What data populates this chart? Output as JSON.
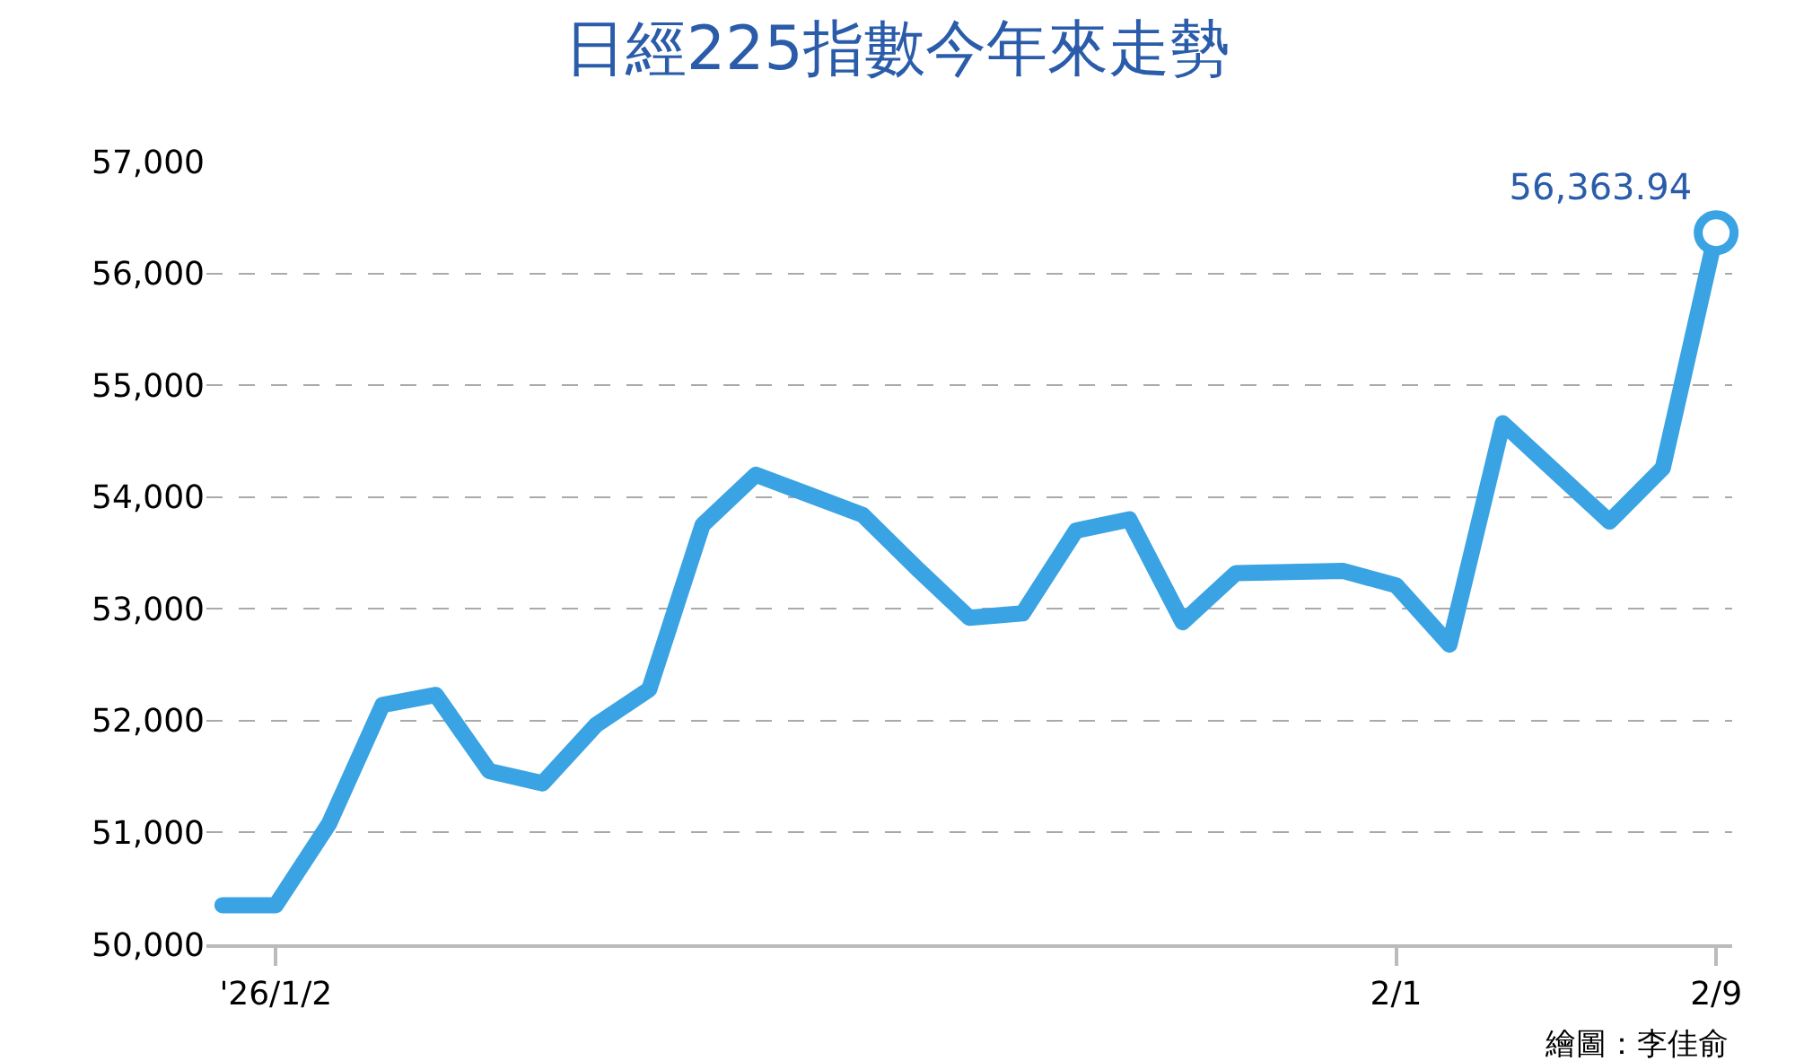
{
  "chart_data": {
    "type": "line",
    "title": "日經225指數今年來走勢",
    "categories": [
      null,
      "'26/1/2",
      null,
      null,
      null,
      null,
      null,
      null,
      null,
      null,
      null,
      null,
      null,
      null,
      null,
      null,
      null,
      null,
      null,
      null,
      null,
      null,
      "2/1",
      null,
      null,
      null,
      null,
      null,
      "2/9"
    ],
    "series": [
      {
        "color": "#3aa3e3",
        "values": [
          50350,
          50350,
          51080,
          52140,
          52230,
          51550,
          51440,
          51960,
          52280,
          53750,
          54200,
          54020,
          53840,
          53370,
          52920,
          52960,
          53700,
          53800,
          52880,
          53320,
          53330,
          53340,
          53210,
          52680,
          54660,
          54220,
          53780,
          54260,
          56363.94
        ],
        "value_labels": [
          null,
          null,
          null,
          null,
          null,
          null,
          null,
          null,
          null,
          null,
          null,
          null,
          null,
          null,
          null,
          null,
          null,
          null,
          null,
          null,
          null,
          null,
          null,
          null,
          null,
          null,
          null,
          null,
          "56,363.94"
        ]
      }
    ],
    "ylim": [
      50000,
      57000
    ],
    "yticks": [
      {
        "value": 50000,
        "label": "50,000"
      },
      {
        "value": 51000,
        "label": "51,000"
      },
      {
        "value": 52000,
        "label": "52,000"
      },
      {
        "value": 53000,
        "label": "53,000"
      },
      {
        "value": 54000,
        "label": "54,000"
      },
      {
        "value": 55000,
        "label": "55,000"
      },
      {
        "value": 56000,
        "label": "56,000"
      },
      {
        "value": 57000,
        "label": "57,000"
      }
    ],
    "grid": "y",
    "line_style": "solid",
    "annotations": [
      "繪圖：李佳俞"
    ]
  }
}
